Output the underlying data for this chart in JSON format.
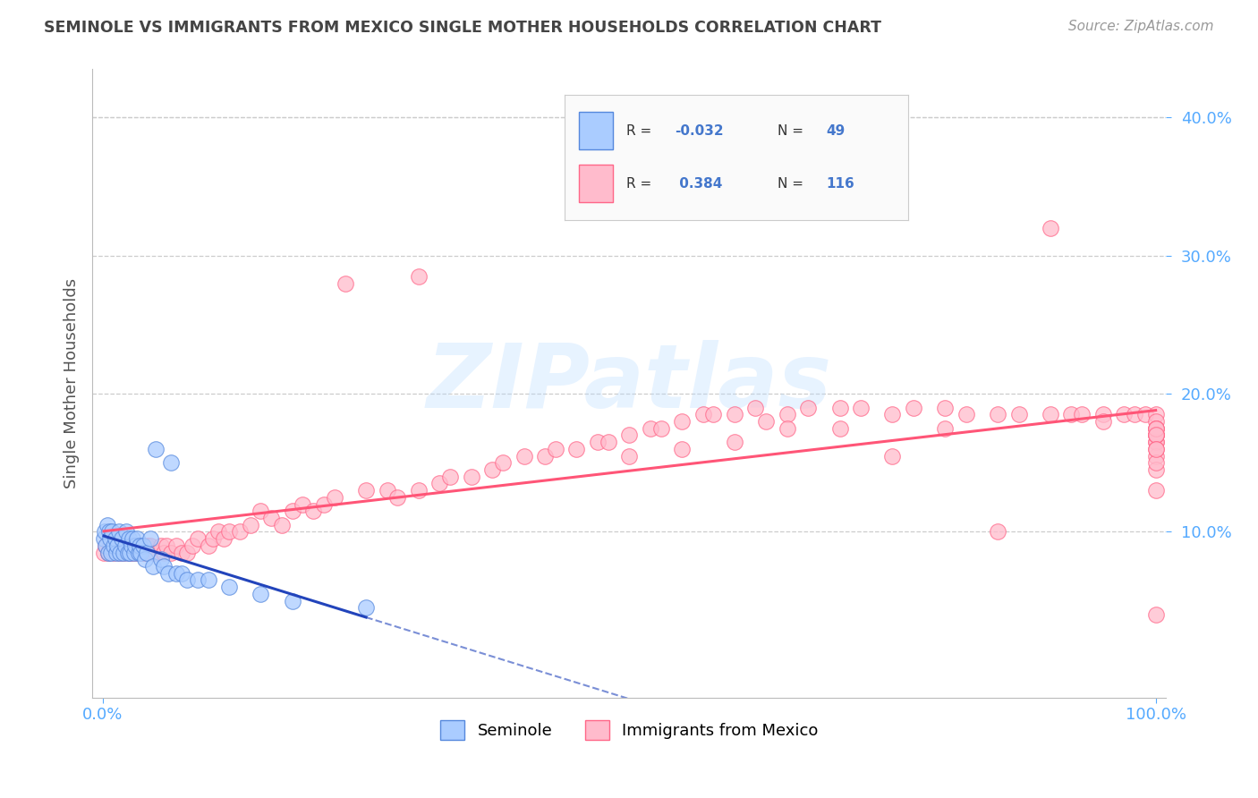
{
  "title": "SEMINOLE VS IMMIGRANTS FROM MEXICO SINGLE MOTHER HOUSEHOLDS CORRELATION CHART",
  "source_text": "Source: ZipAtlas.com",
  "ylabel": "Single Mother Households",
  "xlim": [
    -0.01,
    1.01
  ],
  "ylim": [
    -0.02,
    0.435
  ],
  "ytick_positions": [
    0.1,
    0.2,
    0.3,
    0.4
  ],
  "watermark": "ZIPatlas",
  "legend_r_seminole": "-0.032",
  "legend_n_seminole": "49",
  "legend_r_mexico": "0.384",
  "legend_n_mexico": "116",
  "seminole_color": "#aaccff",
  "mexico_color": "#ffbbcc",
  "seminole_edge_color": "#5588dd",
  "mexico_edge_color": "#ff6688",
  "seminole_line_color": "#2244bb",
  "mexico_line_color": "#ff5577",
  "grid_color": "#cccccc",
  "background_color": "#ffffff",
  "tick_color": "#55aaff",
  "title_color": "#444444",
  "source_color": "#999999",
  "ylabel_color": "#555555",
  "seminole_x": [
    0.001,
    0.002,
    0.003,
    0.004,
    0.005,
    0.006,
    0.007,
    0.008,
    0.009,
    0.01,
    0.012,
    0.013,
    0.014,
    0.015,
    0.016,
    0.018,
    0.02,
    0.021,
    0.022,
    0.024,
    0.025,
    0.026,
    0.027,
    0.028,
    0.03,
    0.031,
    0.032,
    0.034,
    0.035,
    0.036,
    0.038,
    0.04,
    0.042,
    0.045,
    0.048,
    0.05,
    0.055,
    0.058,
    0.062,
    0.065,
    0.07,
    0.075,
    0.08,
    0.09,
    0.1,
    0.12,
    0.15,
    0.18,
    0.25
  ],
  "seminole_y": [
    0.095,
    0.1,
    0.09,
    0.105,
    0.085,
    0.1,
    0.095,
    0.085,
    0.1,
    0.09,
    0.095,
    0.085,
    0.09,
    0.1,
    0.085,
    0.095,
    0.085,
    0.09,
    0.1,
    0.085,
    0.095,
    0.085,
    0.09,
    0.095,
    0.085,
    0.09,
    0.095,
    0.085,
    0.09,
    0.085,
    0.09,
    0.08,
    0.085,
    0.095,
    0.075,
    0.16,
    0.08,
    0.075,
    0.07,
    0.15,
    0.07,
    0.07,
    0.065,
    0.065,
    0.065,
    0.06,
    0.055,
    0.05,
    0.045
  ],
  "mexico_x": [
    0.001,
    0.003,
    0.005,
    0.007,
    0.01,
    0.012,
    0.015,
    0.018,
    0.02,
    0.022,
    0.025,
    0.028,
    0.03,
    0.032,
    0.035,
    0.038,
    0.04,
    0.042,
    0.045,
    0.048,
    0.05,
    0.055,
    0.058,
    0.06,
    0.065,
    0.07,
    0.075,
    0.08,
    0.085,
    0.09,
    0.1,
    0.105,
    0.11,
    0.115,
    0.12,
    0.13,
    0.14,
    0.15,
    0.16,
    0.17,
    0.18,
    0.19,
    0.2,
    0.21,
    0.22,
    0.23,
    0.25,
    0.27,
    0.28,
    0.3,
    0.32,
    0.33,
    0.35,
    0.37,
    0.38,
    0.4,
    0.42,
    0.43,
    0.45,
    0.47,
    0.48,
    0.5,
    0.52,
    0.53,
    0.55,
    0.57,
    0.58,
    0.6,
    0.62,
    0.63,
    0.65,
    0.67,
    0.7,
    0.72,
    0.75,
    0.77,
    0.8,
    0.82,
    0.85,
    0.87,
    0.9,
    0.92,
    0.93,
    0.95,
    0.97,
    0.98,
    0.99,
    1.0,
    0.5,
    0.6,
    0.7,
    0.8,
    0.9,
    1.0,
    0.3,
    0.55,
    0.65,
    0.75,
    0.85,
    0.95,
    1.0,
    1.0,
    1.0,
    1.0,
    1.0,
    1.0,
    1.0,
    1.0,
    1.0,
    1.0,
    1.0,
    1.0,
    1.0,
    1.0,
    1.0,
    1.0
  ],
  "mexico_y": [
    0.085,
    0.09,
    0.085,
    0.09,
    0.085,
    0.09,
    0.085,
    0.09,
    0.085,
    0.09,
    0.085,
    0.085,
    0.09,
    0.085,
    0.09,
    0.085,
    0.085,
    0.09,
    0.09,
    0.085,
    0.085,
    0.09,
    0.085,
    0.09,
    0.085,
    0.09,
    0.085,
    0.085,
    0.09,
    0.095,
    0.09,
    0.095,
    0.1,
    0.095,
    0.1,
    0.1,
    0.105,
    0.115,
    0.11,
    0.105,
    0.115,
    0.12,
    0.115,
    0.12,
    0.125,
    0.28,
    0.13,
    0.13,
    0.125,
    0.13,
    0.135,
    0.14,
    0.14,
    0.145,
    0.15,
    0.155,
    0.155,
    0.16,
    0.16,
    0.165,
    0.165,
    0.17,
    0.175,
    0.175,
    0.18,
    0.185,
    0.185,
    0.185,
    0.19,
    0.18,
    0.185,
    0.19,
    0.19,
    0.19,
    0.185,
    0.19,
    0.19,
    0.185,
    0.185,
    0.185,
    0.185,
    0.185,
    0.185,
    0.185,
    0.185,
    0.185,
    0.185,
    0.185,
    0.155,
    0.165,
    0.175,
    0.175,
    0.32,
    0.18,
    0.285,
    0.16,
    0.175,
    0.155,
    0.1,
    0.18,
    0.17,
    0.165,
    0.175,
    0.165,
    0.175,
    0.17,
    0.17,
    0.175,
    0.17,
    0.155,
    0.16,
    0.145,
    0.15,
    0.16,
    0.13,
    0.04
  ]
}
